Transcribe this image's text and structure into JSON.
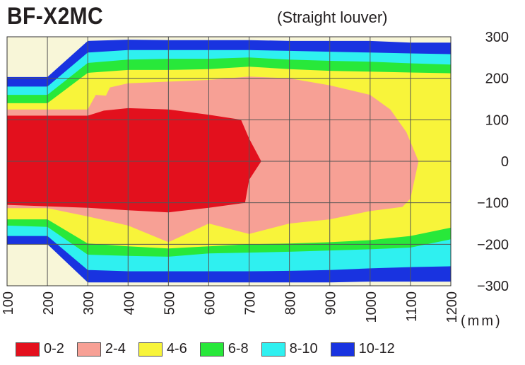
{
  "chart_data": {
    "type": "heatmap",
    "title": "BF-X2MC",
    "subtitle": "(Straight louver)",
    "x_unit": "(mm)",
    "xlim": [
      100,
      1200
    ],
    "ylim": [
      -300,
      300
    ],
    "x_ticks": [
      "100",
      "200",
      "300",
      "400",
      "500",
      "600",
      "700",
      "800",
      "900",
      "1000",
      "1100",
      "1200"
    ],
    "y_ticks": [
      "300",
      "200",
      "100",
      "0",
      "−100",
      "−200",
      "−300"
    ],
    "grid": true,
    "background_color": "#f8f6d8",
    "legend": [
      {
        "label": "0-2",
        "color": "#e3101d"
      },
      {
        "label": "2-4",
        "color": "#f7a095"
      },
      {
        "label": "4-6",
        "color": "#f8f43a"
      },
      {
        "label": "6-8",
        "color": "#28e83a"
      },
      {
        "label": "8-10",
        "color": "#2ff0f0"
      },
      {
        "label": "10-12",
        "color": "#1933e0"
      }
    ],
    "regions": [
      {
        "range": "10-12",
        "color": "#1933e0",
        "points": [
          [
            100,
            203
          ],
          [
            200,
            203
          ],
          [
            300,
            290
          ],
          [
            400,
            293
          ],
          [
            500,
            292
          ],
          [
            600,
            292
          ],
          [
            700,
            292
          ],
          [
            800,
            290
          ],
          [
            900,
            290
          ],
          [
            1000,
            290
          ],
          [
            1100,
            286
          ],
          [
            1200,
            286
          ],
          [
            1200,
            -290
          ],
          [
            1100,
            -290
          ],
          [
            1000,
            -290
          ],
          [
            900,
            -292
          ],
          [
            800,
            -292
          ],
          [
            700,
            -292
          ],
          [
            600,
            -292
          ],
          [
            500,
            -292
          ],
          [
            400,
            -292
          ],
          [
            300,
            -292
          ],
          [
            200,
            -200
          ],
          [
            100,
            -200
          ]
        ]
      },
      {
        "range": "8-10",
        "color": "#2ff0f0",
        "points": [
          [
            100,
            180
          ],
          [
            200,
            180
          ],
          [
            300,
            262
          ],
          [
            400,
            268
          ],
          [
            500,
            268
          ],
          [
            600,
            268
          ],
          [
            700,
            268
          ],
          [
            800,
            266
          ],
          [
            900,
            264
          ],
          [
            1000,
            262
          ],
          [
            1100,
            260
          ],
          [
            1200,
            258
          ],
          [
            1200,
            -253
          ],
          [
            1100,
            -255
          ],
          [
            1000,
            -258
          ],
          [
            900,
            -262
          ],
          [
            800,
            -264
          ],
          [
            700,
            -265
          ],
          [
            600,
            -265
          ],
          [
            500,
            -265
          ],
          [
            400,
            -265
          ],
          [
            300,
            -262
          ],
          [
            200,
            -180
          ],
          [
            100,
            -180
          ]
        ]
      },
      {
        "range": "6-8",
        "color": "#28e83a",
        "points": [
          [
            100,
            160
          ],
          [
            200,
            160
          ],
          [
            300,
            237
          ],
          [
            400,
            245
          ],
          [
            500,
            247
          ],
          [
            600,
            247
          ],
          [
            700,
            250
          ],
          [
            800,
            245
          ],
          [
            900,
            242
          ],
          [
            1000,
            240
          ],
          [
            1100,
            236
          ],
          [
            1200,
            233
          ],
          [
            1200,
            -188
          ],
          [
            1100,
            -208
          ],
          [
            1000,
            -212
          ],
          [
            900,
            -215
          ],
          [
            800,
            -218
          ],
          [
            700,
            -220
          ],
          [
            600,
            -222
          ],
          [
            500,
            -230
          ],
          [
            400,
            -228
          ],
          [
            300,
            -225
          ],
          [
            200,
            -158
          ],
          [
            100,
            -155
          ]
        ]
      },
      {
        "range": "4-6",
        "color": "#f8f43a",
        "points": [
          [
            100,
            140
          ],
          [
            200,
            140
          ],
          [
            300,
            213
          ],
          [
            400,
            220
          ],
          [
            500,
            220
          ],
          [
            600,
            222
          ],
          [
            700,
            228
          ],
          [
            800,
            222
          ],
          [
            900,
            218
          ],
          [
            1000,
            216
          ],
          [
            1100,
            214
          ],
          [
            1200,
            212
          ],
          [
            1200,
            -160
          ],
          [
            1100,
            -180
          ],
          [
            1000,
            -190
          ],
          [
            900,
            -195
          ],
          [
            800,
            -198
          ],
          [
            700,
            -200
          ],
          [
            600,
            -205
          ],
          [
            500,
            -210
          ],
          [
            400,
            -205
          ],
          [
            300,
            -198
          ],
          [
            200,
            -140
          ],
          [
            100,
            -140
          ]
        ]
      },
      {
        "range": "2-4",
        "color": "#f7a095",
        "points": [
          [
            100,
            125
          ],
          [
            300,
            125
          ],
          [
            320,
            160
          ],
          [
            345,
            158
          ],
          [
            355,
            178
          ],
          [
            400,
            188
          ],
          [
            500,
            192
          ],
          [
            600,
            196
          ],
          [
            700,
            204
          ],
          [
            800,
            200
          ],
          [
            900,
            183
          ],
          [
            1000,
            160
          ],
          [
            1050,
            125
          ],
          [
            1090,
            70
          ],
          [
            1120,
            0
          ],
          [
            1100,
            -90
          ],
          [
            1080,
            -110
          ],
          [
            1000,
            -120
          ],
          [
            900,
            -140
          ],
          [
            800,
            -150
          ],
          [
            700,
            -175
          ],
          [
            600,
            -150
          ],
          [
            500,
            -195
          ],
          [
            400,
            -155
          ],
          [
            300,
            -133
          ],
          [
            200,
            -113
          ],
          [
            100,
            -113
          ]
        ]
      },
      {
        "range": "0-2",
        "color": "#e3101d",
        "points": [
          [
            100,
            110
          ],
          [
            300,
            110
          ],
          [
            340,
            122
          ],
          [
            400,
            128
          ],
          [
            500,
            125
          ],
          [
            600,
            112
          ],
          [
            680,
            100
          ],
          [
            700,
            55
          ],
          [
            730,
            0
          ],
          [
            700,
            -45
          ],
          [
            690,
            -100
          ],
          [
            600,
            -112
          ],
          [
            500,
            -123
          ],
          [
            400,
            -118
          ],
          [
            300,
            -112
          ],
          [
            100,
            -105
          ]
        ]
      }
    ]
  }
}
